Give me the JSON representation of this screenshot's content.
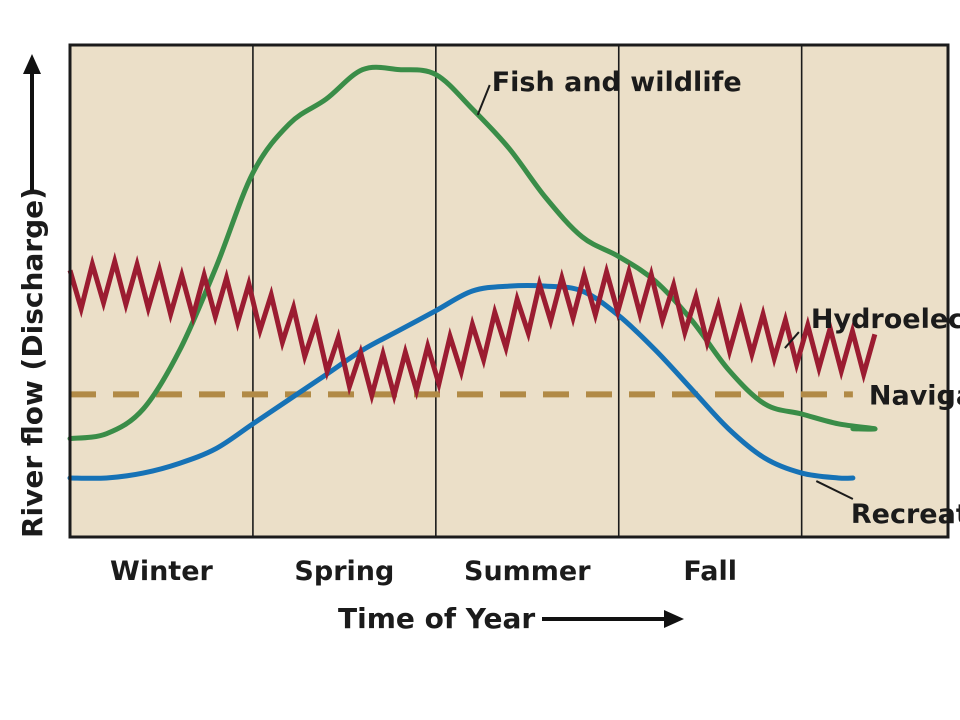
{
  "chart_data": {
    "type": "line",
    "title": "",
    "xlabel": "Time of Year",
    "ylabel": "River flow (Discharge)",
    "x_unit": "fraction of year",
    "xlim": [
      0,
      1.2
    ],
    "ylim": [
      0,
      100
    ],
    "grid": false,
    "categories": [
      "Winter",
      "Spring",
      "Summer",
      "Fall"
    ],
    "season_boundaries": [
      0.25,
      0.5,
      0.75,
      1.0
    ],
    "colors": {
      "background": "#ebdfc8",
      "border": "#1b1b1b",
      "fish": "#3a8d48",
      "recreation": "#1672b6",
      "hydro": "#9b1c31",
      "navigation": "#b18a46"
    },
    "series": [
      {
        "name": "Fish and wildlife",
        "key": "fish",
        "style": "solid",
        "label_side": "above",
        "x": [
          0.0,
          0.05,
          0.1,
          0.15,
          0.2,
          0.25,
          0.3,
          0.35,
          0.4,
          0.45,
          0.5,
          0.55,
          0.6,
          0.65,
          0.7,
          0.75,
          0.8,
          0.85,
          0.9,
          0.95,
          1.0,
          1.05,
          1.1,
          1.07
        ],
        "y": [
          20,
          21,
          26,
          38,
          55,
          74,
          84,
          89,
          95,
          95,
          94,
          87,
          79,
          69,
          61,
          57,
          52,
          44,
          34,
          27,
          25,
          23,
          22,
          22
        ]
      },
      {
        "name": "Recreation",
        "key": "recreation",
        "style": "solid",
        "label_side": "below",
        "x": [
          0.0,
          0.05,
          0.1,
          0.15,
          0.2,
          0.25,
          0.3,
          0.35,
          0.4,
          0.45,
          0.5,
          0.55,
          0.6,
          0.65,
          0.7,
          0.75,
          0.8,
          0.85,
          0.9,
          0.95,
          1.0,
          1.05,
          1.07
        ],
        "y": [
          12,
          12,
          13,
          15,
          18,
          23,
          28,
          33,
          38,
          42,
          46,
          50,
          51,
          51,
          50,
          45,
          38,
          30,
          22,
          16,
          13,
          12,
          12
        ]
      },
      {
        "name": "Hydroelectric",
        "key": "hydro",
        "style": "zigzag",
        "label_side": "right",
        "x": [
          0.0,
          0.05,
          0.1,
          0.15,
          0.2,
          0.25,
          0.3,
          0.35,
          0.4,
          0.45,
          0.5,
          0.55,
          0.6,
          0.65,
          0.7,
          0.75,
          0.8,
          0.85,
          0.9,
          0.95,
          1.0,
          1.05,
          1.1
        ],
        "y": [
          50,
          52,
          51,
          49,
          49,
          47,
          43,
          38,
          33,
          33,
          35,
          39,
          43,
          48,
          49,
          50,
          49,
          45,
          42,
          41,
          39,
          38,
          37
        ]
      },
      {
        "name": "Navigation",
        "key": "navigation",
        "style": "dashed",
        "label_side": "right",
        "x": [
          0,
          1.07
        ],
        "y": [
          29,
          29
        ]
      }
    ]
  }
}
